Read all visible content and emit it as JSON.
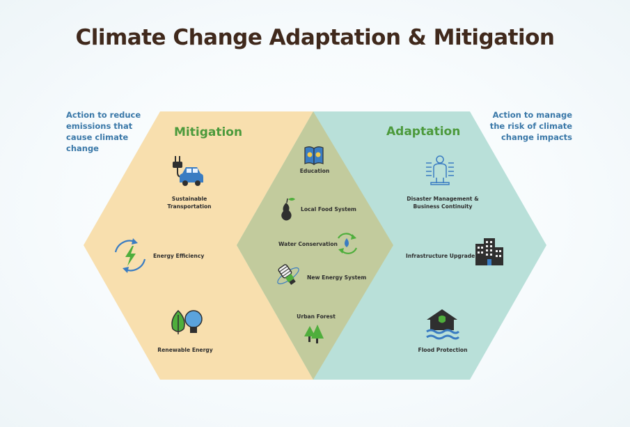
{
  "title": "Climate Change Adaptation & Mitigation",
  "notes": {
    "left": "Action to reduce emissions that cause climate change",
    "right": "Action to manage the risk of climate change impacts"
  },
  "mitigation": {
    "title": "Mitigation",
    "color": "#f8dfae",
    "items": [
      {
        "label_line1": "Sustainable",
        "label_line2": "Transportation",
        "icon": "electric-car-icon"
      },
      {
        "label": "Energy Efficiency",
        "icon": "energy-efficiency-icon"
      },
      {
        "label": "Renewable Energy",
        "icon": "leaf-bulb-icon"
      }
    ]
  },
  "adaptation": {
    "title": "Adaptation",
    "color": "#b9e0d9",
    "items": [
      {
        "label_line1": "Disaster Management &",
        "label_line2": "Business Continuity",
        "icon": "person-monitor-icon"
      },
      {
        "label": "Infrastructure Upgrade",
        "icon": "buildings-icon"
      },
      {
        "label": "Flood Protection",
        "icon": "flooded-house-icon"
      }
    ]
  },
  "overlap": {
    "color": "#c2cb9d",
    "items": [
      {
        "label": "Education",
        "icon": "book-icon"
      },
      {
        "label": "Local Food System",
        "icon": "pear-icon"
      },
      {
        "label": "Water Conservation",
        "icon": "water-cycle-icon"
      },
      {
        "label": "New Energy System",
        "icon": "cfl-bulb-icon"
      },
      {
        "label": "Urban Forest",
        "icon": "trees-icon"
      }
    ]
  }
}
